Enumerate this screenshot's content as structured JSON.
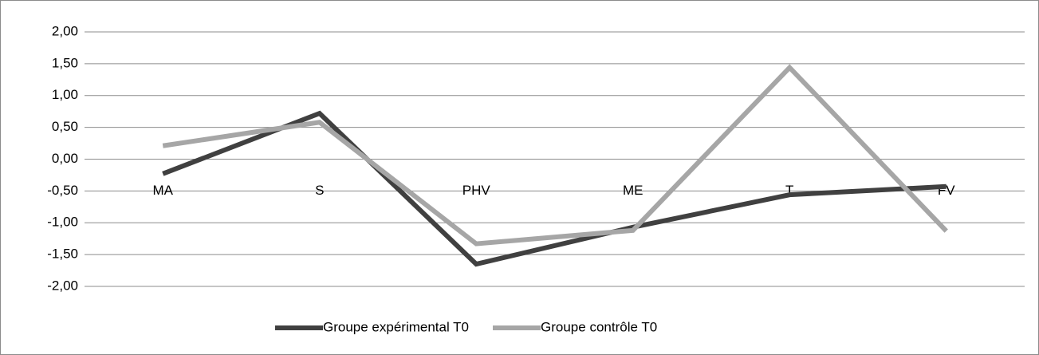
{
  "chart_data": {
    "type": "line",
    "categories": [
      "MA",
      "S",
      "PHV",
      "ME",
      "T",
      "FV"
    ],
    "series": [
      {
        "name": "Groupe expérimental T0",
        "color": "#404040",
        "values": [
          -0.23,
          0.72,
          -1.65,
          -1.07,
          -0.56,
          -0.43
        ]
      },
      {
        "name": "Groupe contrôle T0",
        "color": "#a6a6a6",
        "values": [
          0.21,
          0.58,
          -1.33,
          -1.12,
          1.44,
          -1.13
        ]
      }
    ],
    "ylim": [
      -2,
      2
    ],
    "yticks": [
      {
        "value": -2,
        "label": "-2,00"
      },
      {
        "value": -1.5,
        "label": "-1,50"
      },
      {
        "value": -1,
        "label": "-1,00"
      },
      {
        "value": -0.5,
        "label": "-0,50"
      },
      {
        "value": 0,
        "label": "0,00"
      },
      {
        "value": 0.5,
        "label": "0,50"
      },
      {
        "value": 1,
        "label": "1,00"
      },
      {
        "value": 1.5,
        "label": "1,50"
      },
      {
        "value": 2,
        "label": "2,00"
      }
    ],
    "grid": true,
    "legend": "bottom"
  }
}
